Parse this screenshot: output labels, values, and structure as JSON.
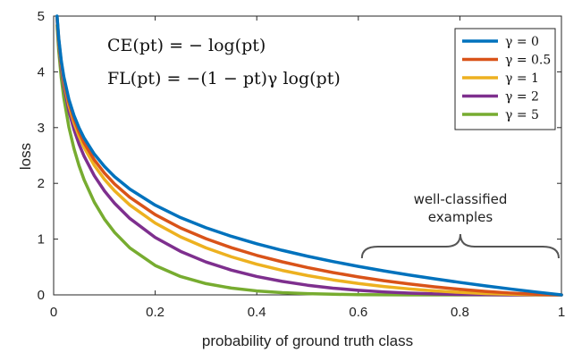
{
  "chart_data": {
    "type": "line",
    "xlabel": "probability of ground truth class",
    "ylabel": "loss",
    "xlim": [
      0,
      1
    ],
    "ylim": [
      0,
      5
    ],
    "x_ticks": [
      "0",
      "0.2",
      "0.4",
      "0.6",
      "0.8",
      "1"
    ],
    "y_ticks": [
      "0",
      "1",
      "2",
      "3",
      "4",
      "5"
    ],
    "grid": false,
    "legend_position": "top-right",
    "formulas": {
      "ce": "CE(pt) = − log(pt)",
      "fl": "FL(pt) = −(1 − pt)γ log(pt)"
    },
    "annotation": {
      "line1": "well-classified",
      "line2": "examples",
      "x_range": [
        0.6,
        1.0
      ]
    },
    "x": [
      0.0067,
      0.01,
      0.015,
      0.02,
      0.03,
      0.04,
      0.05,
      0.06,
      0.08,
      0.1,
      0.12,
      0.15,
      0.2,
      0.25,
      0.3,
      0.35,
      0.4,
      0.45,
      0.5,
      0.55,
      0.6,
      0.65,
      0.7,
      0.75,
      0.8,
      0.85,
      0.9,
      0.95,
      1.0
    ],
    "series": [
      {
        "name": "γ = 0",
        "gamma": 0,
        "color": "#0072bd",
        "values": [
          5.0,
          4.605,
          4.2,
          3.912,
          3.507,
          3.219,
          2.996,
          2.813,
          2.526,
          2.303,
          2.12,
          1.897,
          1.609,
          1.386,
          1.204,
          1.05,
          0.916,
          0.799,
          0.693,
          0.598,
          0.511,
          0.431,
          0.357,
          0.288,
          0.223,
          0.163,
          0.105,
          0.051,
          0.0
        ]
      },
      {
        "name": "γ = 0.5",
        "gamma": 0.5,
        "color": "#d95319",
        "values": [
          4.983,
          4.582,
          4.168,
          3.873,
          3.454,
          3.154,
          2.92,
          2.727,
          2.423,
          2.184,
          1.989,
          1.749,
          1.439,
          1.2,
          1.007,
          0.846,
          0.709,
          0.593,
          0.49,
          0.401,
          0.323,
          0.255,
          0.196,
          0.144,
          0.1,
          0.063,
          0.033,
          0.011,
          0.0
        ]
      },
      {
        "name": "γ = 1",
        "gamma": 1,
        "color": "#edb120",
        "values": [
          4.966,
          4.559,
          4.137,
          3.834,
          3.401,
          3.09,
          2.846,
          2.644,
          2.324,
          2.072,
          1.866,
          1.612,
          1.288,
          1.04,
          0.843,
          0.683,
          0.55,
          0.439,
          0.347,
          0.269,
          0.204,
          0.151,
          0.107,
          0.072,
          0.045,
          0.024,
          0.011,
          0.003,
          0.0
        ]
      },
      {
        "name": "γ = 2",
        "gamma": 2,
        "color": "#7e2f8e",
        "values": [
          4.933,
          4.513,
          4.075,
          3.757,
          3.299,
          2.966,
          2.704,
          2.486,
          2.138,
          1.865,
          1.642,
          1.371,
          1.03,
          0.78,
          0.59,
          0.444,
          0.33,
          0.242,
          0.173,
          0.121,
          0.082,
          0.053,
          0.032,
          0.018,
          0.009,
          0.004,
          0.001,
          0.0,
          0.0
        ]
      },
      {
        "name": "γ = 5",
        "gamma": 5,
        "color": "#77ac30",
        "values": [
          4.834,
          4.379,
          3.893,
          3.537,
          3.011,
          2.624,
          2.318,
          2.063,
          1.664,
          1.36,
          1.121,
          0.842,
          0.527,
          0.329,
          0.202,
          0.122,
          0.071,
          0.04,
          0.022,
          0.011,
          0.005,
          0.002,
          0.001,
          0.0,
          0.0,
          0.0,
          0.0,
          0.0,
          0.0
        ]
      }
    ]
  }
}
